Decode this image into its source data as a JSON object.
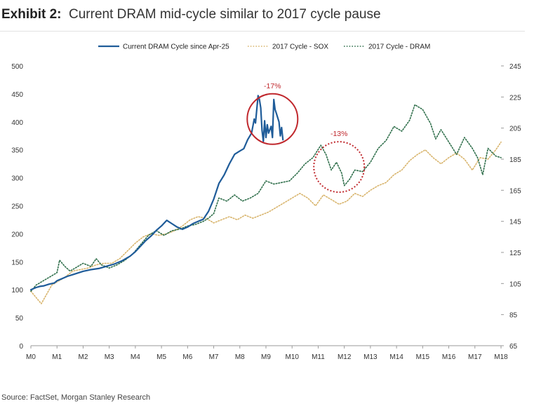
{
  "exhibit": {
    "label": "Exhibit 2:",
    "title": "Current DRAM mid-cycle similar to 2017 cycle pause"
  },
  "source": "Source: FactSet, Morgan Stanley Research",
  "chart_data": {
    "type": "line",
    "title": "Current DRAM mid-cycle similar to 2017 cycle pause",
    "x_categories": [
      "M0",
      "M1",
      "M2",
      "M3",
      "M4",
      "M5",
      "M6",
      "M7",
      "M8",
      "M9",
      "M10",
      "M11",
      "M12",
      "M13",
      "M14",
      "M15",
      "M16",
      "M17",
      "M18"
    ],
    "y_left": {
      "min": 0,
      "max": 500,
      "ticks": [
        0,
        50,
        100,
        150,
        200,
        250,
        300,
        350,
        400,
        450,
        500
      ]
    },
    "y_right": {
      "min": 65,
      "max": 245,
      "ticks": [
        65,
        85,
        105,
        125,
        145,
        165,
        185,
        205,
        225,
        245
      ]
    },
    "legend_position": "top-center",
    "series": [
      {
        "name": "Current DRAM Cycle since Apr-25",
        "axis": "left",
        "style": "solid",
        "color": "#1f5c99",
        "points": [
          [
            0,
            100
          ],
          [
            0.1,
            102
          ],
          [
            0.2,
            104
          ],
          [
            0.35,
            106
          ],
          [
            0.5,
            107
          ],
          [
            0.7,
            110
          ],
          [
            0.9,
            112
          ],
          [
            1.0,
            116
          ],
          [
            1.2,
            120
          ],
          [
            1.4,
            124
          ],
          [
            1.6,
            127
          ],
          [
            1.8,
            130
          ],
          [
            2.0,
            133
          ],
          [
            2.3,
            136
          ],
          [
            2.6,
            138
          ],
          [
            2.9,
            142
          ],
          [
            3.2,
            146
          ],
          [
            3.5,
            152
          ],
          [
            3.8,
            160
          ],
          [
            4.0,
            168
          ],
          [
            4.2,
            178
          ],
          [
            4.4,
            188
          ],
          [
            4.6,
            196
          ],
          [
            4.8,
            206
          ],
          [
            5.0,
            214
          ],
          [
            5.2,
            224
          ],
          [
            5.4,
            218
          ],
          [
            5.6,
            212
          ],
          [
            5.8,
            208
          ],
          [
            6.0,
            212
          ],
          [
            6.2,
            218
          ],
          [
            6.4,
            222
          ],
          [
            6.6,
            226
          ],
          [
            6.8,
            240
          ],
          [
            7.0,
            262
          ],
          [
            7.2,
            290
          ],
          [
            7.4,
            305
          ],
          [
            7.6,
            325
          ],
          [
            7.8,
            342
          ],
          [
            8.0,
            348
          ],
          [
            8.15,
            352
          ],
          [
            8.3,
            368
          ],
          [
            8.45,
            380
          ],
          [
            8.55,
            405
          ],
          [
            8.6,
            398
          ],
          [
            8.65,
            423
          ],
          [
            8.7,
            447
          ],
          [
            8.75,
            440
          ],
          [
            8.8,
            425
          ],
          [
            8.85,
            385
          ],
          [
            8.9,
            365
          ],
          [
            8.95,
            402
          ],
          [
            9.0,
            372
          ],
          [
            9.05,
            395
          ],
          [
            9.1,
            380
          ],
          [
            9.2,
            392
          ],
          [
            9.25,
            372
          ],
          [
            9.3,
            440
          ],
          [
            9.35,
            422
          ],
          [
            9.4,
            415
          ],
          [
            9.5,
            400
          ],
          [
            9.55,
            375
          ],
          [
            9.6,
            390
          ],
          [
            9.65,
            368
          ]
        ]
      },
      {
        "name": "2017 Cycle - SOX",
        "axis": "right",
        "style": "dotted",
        "color": "#d8b46c",
        "points": [
          [
            0,
            100
          ],
          [
            0.2,
            96
          ],
          [
            0.4,
            92
          ],
          [
            0.6,
            98
          ],
          [
            0.8,
            104
          ],
          [
            1.0,
            106
          ],
          [
            1.3,
            109
          ],
          [
            1.6,
            113
          ],
          [
            1.9,
            114
          ],
          [
            2.2,
            115
          ],
          [
            2.5,
            117
          ],
          [
            2.8,
            118
          ],
          [
            3.1,
            118
          ],
          [
            3.4,
            121
          ],
          [
            3.7,
            126
          ],
          [
            4.0,
            131
          ],
          [
            4.3,
            135
          ],
          [
            4.6,
            137
          ],
          [
            4.9,
            136
          ],
          [
            5.2,
            137
          ],
          [
            5.5,
            139
          ],
          [
            5.8,
            142
          ],
          [
            6.1,
            146
          ],
          [
            6.4,
            148
          ],
          [
            6.7,
            147
          ],
          [
            7.0,
            144
          ],
          [
            7.3,
            146
          ],
          [
            7.6,
            148
          ],
          [
            7.9,
            146
          ],
          [
            8.2,
            149
          ],
          [
            8.5,
            147
          ],
          [
            8.8,
            149
          ],
          [
            9.1,
            151
          ],
          [
            9.4,
            154
          ],
          [
            9.7,
            157
          ],
          [
            10.0,
            160
          ],
          [
            10.3,
            163
          ],
          [
            10.6,
            160
          ],
          [
            10.9,
            155
          ],
          [
            11.2,
            162
          ],
          [
            11.5,
            159
          ],
          [
            11.8,
            156
          ],
          [
            12.1,
            158
          ],
          [
            12.4,
            163
          ],
          [
            12.7,
            161
          ],
          [
            13.0,
            165
          ],
          [
            13.3,
            168
          ],
          [
            13.6,
            170
          ],
          [
            13.9,
            175
          ],
          [
            14.2,
            178
          ],
          [
            14.5,
            184
          ],
          [
            14.8,
            188
          ],
          [
            15.1,
            191
          ],
          [
            15.4,
            186
          ],
          [
            15.7,
            182
          ],
          [
            16.0,
            186
          ],
          [
            16.3,
            189
          ],
          [
            16.6,
            185
          ],
          [
            16.9,
            178
          ],
          [
            17.2,
            186
          ],
          [
            17.5,
            185
          ],
          [
            17.8,
            191
          ],
          [
            18.0,
            196
          ]
        ]
      },
      {
        "name": "2017 Cycle - DRAM",
        "axis": "right",
        "style": "dotted",
        "color": "#2e6e4a",
        "points": [
          [
            0,
            100
          ],
          [
            0.2,
            104
          ],
          [
            0.5,
            107
          ],
          [
            0.8,
            110
          ],
          [
            1.0,
            112
          ],
          [
            1.1,
            120
          ],
          [
            1.3,
            116
          ],
          [
            1.5,
            113
          ],
          [
            1.7,
            115
          ],
          [
            2.0,
            118
          ],
          [
            2.3,
            116
          ],
          [
            2.5,
            121
          ],
          [
            2.7,
            117
          ],
          [
            3.0,
            115
          ],
          [
            3.3,
            117
          ],
          [
            3.6,
            120
          ],
          [
            3.9,
            124
          ],
          [
            4.2,
            130
          ],
          [
            4.5,
            136
          ],
          [
            4.8,
            139
          ],
          [
            5.1,
            136
          ],
          [
            5.4,
            139
          ],
          [
            5.7,
            140
          ],
          [
            6.0,
            142
          ],
          [
            6.3,
            143
          ],
          [
            6.6,
            145
          ],
          [
            6.8,
            147
          ],
          [
            7.0,
            150
          ],
          [
            7.2,
            160
          ],
          [
            7.5,
            158
          ],
          [
            7.8,
            162
          ],
          [
            8.1,
            158
          ],
          [
            8.4,
            160
          ],
          [
            8.7,
            163
          ],
          [
            9.0,
            171
          ],
          [
            9.3,
            169
          ],
          [
            9.6,
            170
          ],
          [
            9.9,
            171
          ],
          [
            10.2,
            176
          ],
          [
            10.5,
            182
          ],
          [
            10.8,
            186
          ],
          [
            11.1,
            194
          ],
          [
            11.3,
            188
          ],
          [
            11.5,
            178
          ],
          [
            11.7,
            183
          ],
          [
            11.9,
            176
          ],
          [
            12.0,
            168
          ],
          [
            12.2,
            172
          ],
          [
            12.4,
            178
          ],
          [
            12.7,
            177
          ],
          [
            13.0,
            183
          ],
          [
            13.3,
            192
          ],
          [
            13.6,
            197
          ],
          [
            13.9,
            206
          ],
          [
            14.2,
            203
          ],
          [
            14.5,
            210
          ],
          [
            14.7,
            220
          ],
          [
            15.0,
            217
          ],
          [
            15.3,
            208
          ],
          [
            15.5,
            198
          ],
          [
            15.7,
            204
          ],
          [
            16.0,
            196
          ],
          [
            16.3,
            188
          ],
          [
            16.6,
            199
          ],
          [
            16.9,
            192
          ],
          [
            17.1,
            186
          ],
          [
            17.3,
            175
          ],
          [
            17.5,
            192
          ],
          [
            17.8,
            187
          ],
          [
            18.0,
            186
          ]
        ]
      }
    ],
    "annotations": [
      {
        "label": "-17%",
        "x": 9.25,
        "y_left": 405,
        "color": "#c0282d",
        "style": "solid"
      },
      {
        "label": "-13%",
        "x": 11.8,
        "y_right": 180,
        "color": "#c0282d",
        "style": "dotted"
      }
    ]
  }
}
